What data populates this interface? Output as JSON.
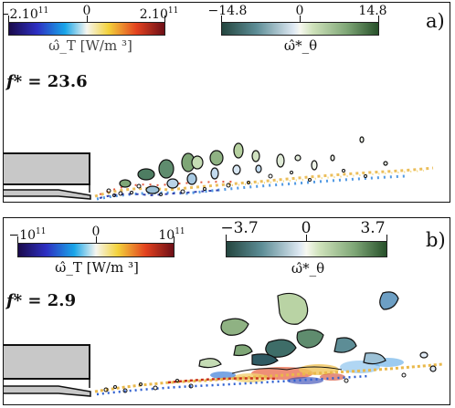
{
  "panel_a": {
    "label": "a)",
    "f_star_label": "f* = ",
    "f_star_value": "23.6",
    "cbar_temperature": {
      "tick_min": "−2.10",
      "tick_min_exp": "11",
      "tick_mid": "0",
      "tick_max": "2.10",
      "tick_max_exp": "11",
      "label": "ω̂_T [W/m ³]"
    },
    "cbar_vorticity": {
      "tick_min": "−14.8",
      "tick_mid": "0",
      "tick_max": "14.8",
      "label": "ω̂*_θ"
    }
  },
  "panel_b": {
    "label": "b)",
    "f_star_label": "f* = ",
    "f_star_value": "2.9",
    "cbar_temperature": {
      "tick_min": "−10",
      "tick_min_exp": "11",
      "tick_mid": "0",
      "tick_max": "10",
      "tick_max_exp": "11",
      "label": "ω̂_T [W/m ³]"
    },
    "cbar_vorticity": {
      "tick_min": "−3.7",
      "tick_mid": "0",
      "tick_max": "3.7",
      "label": "ω̂*_θ"
    }
  },
  "colors": {
    "temperature_map": [
      "#1a0a4a",
      "#2d2fc2",
      "#19a5e8",
      "#f6f6f0",
      "#f3d23b",
      "#e3421f",
      "#6d0f17"
    ],
    "vorticity_map": [
      "#24463f",
      "#5d8d96",
      "#dfe9f3",
      "#f7f8f0",
      "#cfe2bb",
      "#7ea676",
      "#27502a"
    ],
    "body_fill": "#c8c8c8"
  }
}
